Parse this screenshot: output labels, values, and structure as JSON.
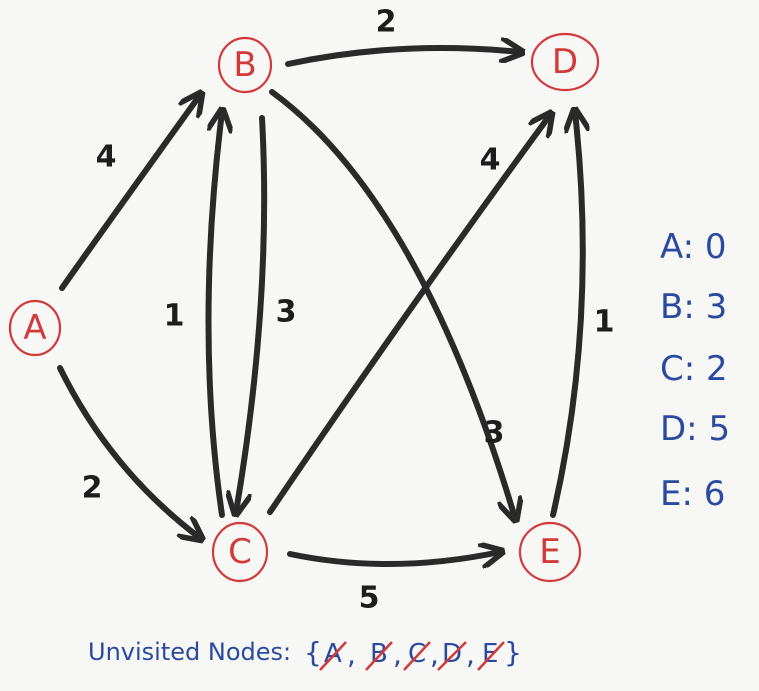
{
  "nodes": [
    {
      "id": "A",
      "label": "A"
    },
    {
      "id": "B",
      "label": "B"
    },
    {
      "id": "C",
      "label": "C"
    },
    {
      "id": "D",
      "label": "D"
    },
    {
      "id": "E",
      "label": "E"
    }
  ],
  "edges": [
    {
      "from": "A",
      "to": "B",
      "weight": "4"
    },
    {
      "from": "A",
      "to": "C",
      "weight": "2"
    },
    {
      "from": "C",
      "to": "B",
      "weight": "1"
    },
    {
      "from": "B",
      "to": "C",
      "weight": "3"
    },
    {
      "from": "B",
      "to": "D",
      "weight": "2"
    },
    {
      "from": "C",
      "to": "D",
      "weight": "4"
    },
    {
      "from": "B",
      "to": "E",
      "weight": "3"
    },
    {
      "from": "C",
      "to": "E",
      "weight": "5"
    },
    {
      "from": "E",
      "to": "D",
      "weight": "1"
    }
  ],
  "distances": [
    {
      "node": "A",
      "value": "0",
      "text": "A: 0"
    },
    {
      "node": "B",
      "value": "3",
      "text": "B: 3"
    },
    {
      "node": "C",
      "value": "2",
      "text": "C: 2"
    },
    {
      "node": "D",
      "value": "5",
      "text": "D: 5"
    },
    {
      "node": "E",
      "value": "6",
      "text": "E: 6"
    }
  ],
  "unvisited": {
    "label": "Unvisited Nodes:",
    "open_brace": "{",
    "close_brace": "}",
    "separator": ",",
    "items": [
      {
        "letter": "A",
        "crossed": true
      },
      {
        "letter": "B",
        "crossed": true
      },
      {
        "letter": "C",
        "crossed": true
      },
      {
        "letter": "D",
        "crossed": true
      },
      {
        "letter": "E",
        "crossed": true
      }
    ]
  },
  "colors": {
    "node": "#d23a3a",
    "edge": "#2a2a2a",
    "annotation": "#2a4aa0"
  }
}
